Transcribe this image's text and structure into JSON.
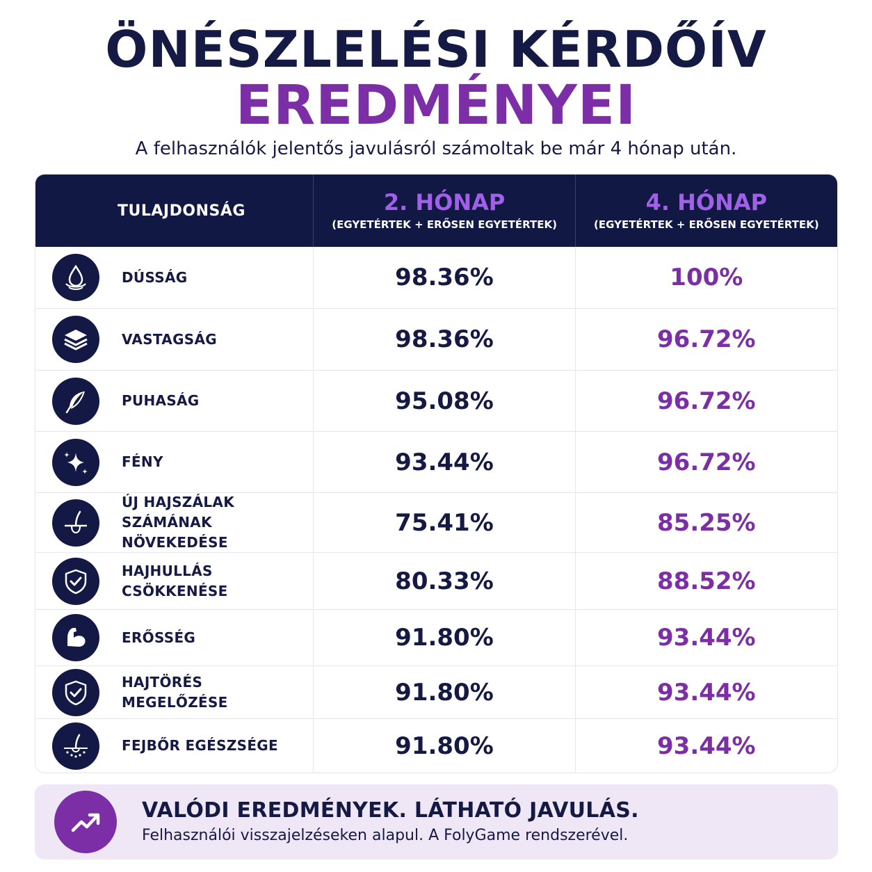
{
  "title_line1": "ÖNÉSZLELÉSI KÉRDŐÍV",
  "title_line2": "EREDMÉNYEI",
  "subtitle": "A felhasználók jelentős javulásról számoltak be már 4 hónap után.",
  "table": {
    "header": {
      "property": "TULAJDONSÁG",
      "month2_title": "2. HÓNAP",
      "month2_sub": "(EGYETÉRTEK + ERŐSEN EGYETÉRTEK)",
      "month4_title": "4. HÓNAP",
      "month4_sub": "(EGYETÉRTEK + ERŐSEN EGYETÉRTEK)"
    },
    "rows": [
      {
        "icon": "droplet-icon",
        "label": "DÚSSÁG",
        "m2": "98.36%",
        "m4": "100%"
      },
      {
        "icon": "layers-icon",
        "label": "VASTAGSÁG",
        "m2": "98.36%",
        "m4": "96.72%"
      },
      {
        "icon": "feather-icon",
        "label": "PUHASÁG",
        "m2": "95.08%",
        "m4": "96.72%"
      },
      {
        "icon": "sparkle-icon",
        "label": "FÉNY",
        "m2": "93.44%",
        "m4": "96.72%"
      },
      {
        "icon": "hair-follicle-icon",
        "label": "ÚJ HAJSZÁLAK\nSZÁMÁNAK NÖVEKEDÉSE",
        "m2": "75.41%",
        "m4": "85.25%"
      },
      {
        "icon": "shield-check-icon",
        "label": "HAJHULLÁS CSÖKKENÉSE",
        "m2": "80.33%",
        "m4": "88.52%"
      },
      {
        "icon": "muscle-arm-icon",
        "label": "ERŐSSÉG",
        "m2": "91.80%",
        "m4": "93.44%"
      },
      {
        "icon": "shield-check-icon",
        "label": "HAJTÖRÉS MEGELŐZÉSE",
        "m2": "91.80%",
        "m4": "93.44%"
      },
      {
        "icon": "scalp-icon",
        "label": "FEJBŐR EGÉSZSÉGE",
        "m2": "91.80%",
        "m4": "93.44%"
      }
    ]
  },
  "banner": {
    "icon": "trend-up-icon",
    "title": "VALÓDI EREDMÉNYEK. LÁTHATÓ JAVULÁS.",
    "text": "Felhasználói visszajelzéseken alapul. A FolyGame rendszerével."
  },
  "colors": {
    "navy": "#121844",
    "purple": "#7b2ea6",
    "banner_bg": "#efe7f6"
  }
}
